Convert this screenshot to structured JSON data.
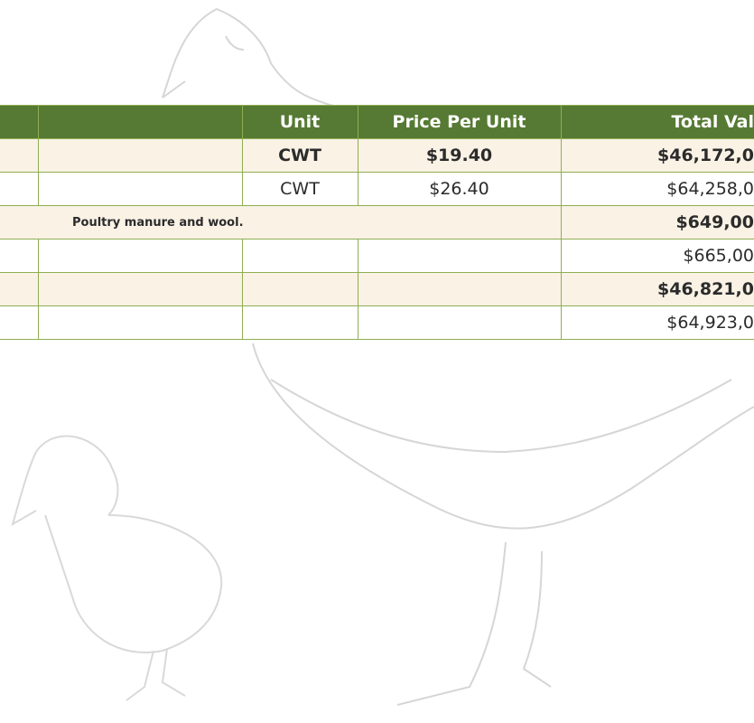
{
  "table": {
    "header": {
      "unit": "Unit",
      "price": "Price Per Unit",
      "total": "Total Val"
    },
    "rows": [
      {
        "unit": "CWT",
        "price": "$19.40",
        "total": "$46,172,0",
        "bold": true
      },
      {
        "unit": "CWT",
        "price": "$26.40",
        "total": "$64,258,0",
        "bold": false
      },
      {
        "note": "Poultry manure and wool.",
        "total": "$649,00",
        "bold": true
      },
      {
        "total": "$665,00",
        "bold": false
      },
      {
        "total": "$46,821,0",
        "bold": true
      },
      {
        "total": "$64,923,0",
        "bold": false
      }
    ]
  }
}
